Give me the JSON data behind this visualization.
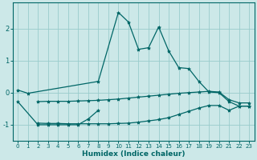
{
  "xlabel": "Humidex (Indice chaleur)",
  "bg_color": "#cce8e8",
  "grid_color": "#99cccc",
  "line_color": "#006666",
  "xlim": [
    -0.5,
    23.5
  ],
  "ylim": [
    -1.5,
    2.8
  ],
  "yticks": [
    -1,
    0,
    1,
    2
  ],
  "xticks": [
    0,
    1,
    2,
    3,
    4,
    5,
    6,
    7,
    8,
    9,
    10,
    11,
    12,
    13,
    14,
    15,
    16,
    17,
    18,
    19,
    20,
    21,
    22,
    23
  ],
  "series": [
    {
      "x": [
        0,
        1,
        8,
        10,
        11,
        12,
        13,
        14,
        15,
        16,
        17,
        18,
        19,
        20,
        21,
        22,
        23
      ],
      "y": [
        0.08,
        -0.02,
        0.35,
        2.5,
        2.2,
        1.35,
        1.4,
        2.05,
        1.3,
        0.78,
        0.75,
        0.35,
        0.02,
        0.0,
        -0.28,
        -0.42,
        -0.42
      ]
    },
    {
      "x": [
        0,
        2,
        3,
        4,
        5,
        6,
        7,
        8
      ],
      "y": [
        -0.28,
        -1.0,
        -1.0,
        -1.0,
        -1.0,
        -1.0,
        -0.82,
        -0.55
      ]
    },
    {
      "x": [
        2,
        3,
        4,
        5,
        6,
        7,
        8,
        9,
        10,
        11,
        12,
        13,
        14,
        15,
        16,
        17,
        18,
        19,
        20,
        21,
        22,
        23
      ],
      "y": [
        -0.28,
        -0.27,
        -0.27,
        -0.27,
        -0.26,
        -0.25,
        -0.24,
        -0.22,
        -0.2,
        -0.17,
        -0.14,
        -0.11,
        -0.08,
        -0.05,
        -0.02,
        0.0,
        0.02,
        0.04,
        0.02,
        -0.22,
        -0.32,
        -0.32
      ]
    },
    {
      "x": [
        2,
        3,
        4,
        5,
        6,
        7,
        8,
        9,
        10,
        11,
        12,
        13,
        14,
        15,
        16,
        17,
        18,
        19,
        20,
        21,
        22,
        23
      ],
      "y": [
        -0.95,
        -0.96,
        -0.96,
        -0.97,
        -0.97,
        -0.97,
        -0.97,
        -0.97,
        -0.96,
        -0.95,
        -0.92,
        -0.88,
        -0.84,
        -0.78,
        -0.68,
        -0.58,
        -0.48,
        -0.4,
        -0.4,
        -0.55,
        -0.42,
        -0.42
      ]
    }
  ]
}
